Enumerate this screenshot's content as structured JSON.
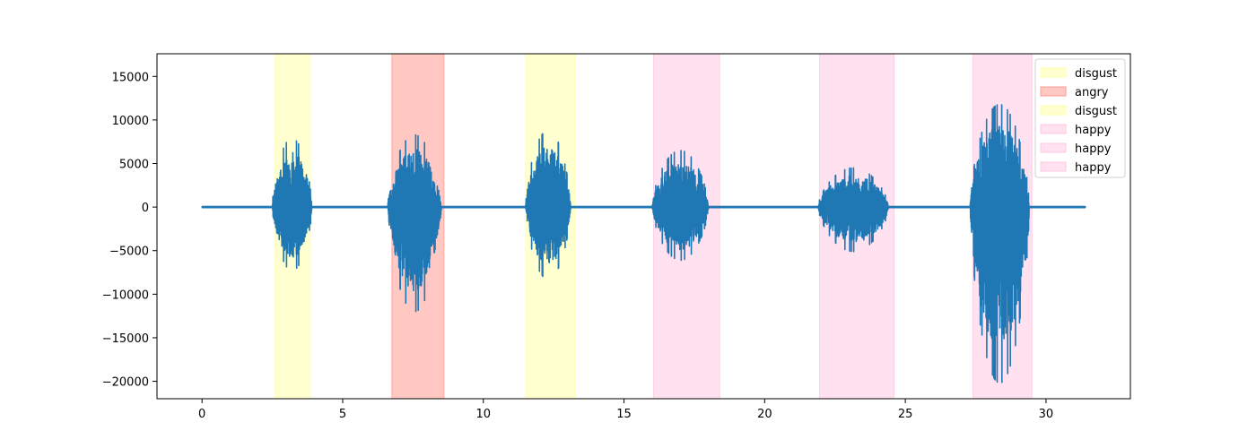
{
  "chart_data": {
    "type": "line",
    "title": "",
    "xlabel": "",
    "ylabel": "",
    "xlim": [
      -1.6,
      33.0
    ],
    "ylim": [
      -22000,
      17600
    ],
    "x_ticks": [
      0,
      5,
      10,
      15,
      20,
      25,
      30
    ],
    "x_tick_labels": [
      "0",
      "5",
      "10",
      "15",
      "20",
      "25",
      "30"
    ],
    "y_ticks": [
      -20000,
      -15000,
      -10000,
      -5000,
      0,
      5000,
      10000,
      15000
    ],
    "y_tick_labels": [
      "−20000",
      "−15000",
      "−10000",
      "−5000",
      "0",
      "5000",
      "10000",
      "15000"
    ],
    "grid": false,
    "legend_position": "top-right",
    "series": [
      {
        "color": "#1f77b4",
        "x_range": [
          0,
          31.4
        ],
        "baseline": 0,
        "bursts": [
          {
            "start": 2.5,
            "end": 3.9,
            "peak_pos": 7900,
            "peak_neg": -7300
          },
          {
            "start": 6.6,
            "end": 8.5,
            "peak_pos": 8300,
            "peak_neg": -12000
          },
          {
            "start": 11.5,
            "end": 13.1,
            "peak_pos": 8800,
            "peak_neg": -8300
          },
          {
            "start": 16.0,
            "end": 18.0,
            "peak_pos": 6500,
            "peak_neg": -6100
          },
          {
            "start": 21.9,
            "end": 24.4,
            "peak_pos": 4500,
            "peak_neg": -5100
          },
          {
            "start": 27.3,
            "end": 29.4,
            "peak_pos": 11800,
            "peak_neg": -20200
          }
        ]
      }
    ],
    "regions": [
      {
        "label": "disgust",
        "start": 2.6,
        "end": 3.85,
        "color": "#ffffaa"
      },
      {
        "label": "angry",
        "start": 6.75,
        "end": 8.6,
        "color": "#ff9b90"
      },
      {
        "label": "disgust",
        "start": 11.5,
        "end": 13.25,
        "color": "#ffffaa"
      },
      {
        "label": "happy",
        "start": 16.05,
        "end": 18.4,
        "color": "#ffc8e1"
      },
      {
        "label": "happy",
        "start": 21.95,
        "end": 24.6,
        "color": "#ffc8e1"
      },
      {
        "label": "happy",
        "start": 27.4,
        "end": 29.5,
        "color": "#ffc8e1"
      }
    ]
  }
}
